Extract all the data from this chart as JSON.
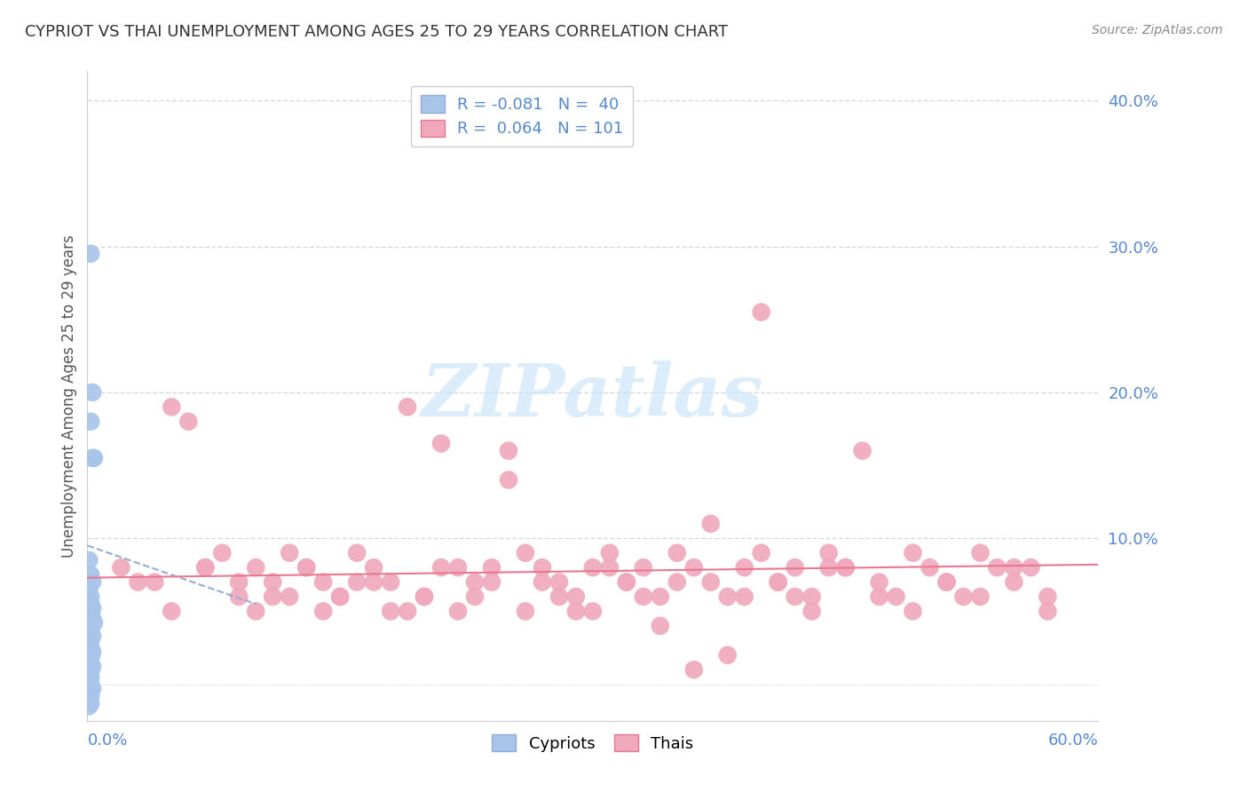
{
  "title": "CYPRIOT VS THAI UNEMPLOYMENT AMONG AGES 25 TO 29 YEARS CORRELATION CHART",
  "source": "Source: ZipAtlas.com",
  "ylabel": "Unemployment Among Ages 25 to 29 years",
  "yticks": [
    0.0,
    0.1,
    0.2,
    0.3,
    0.4
  ],
  "ytick_labels": [
    "",
    "10.0%",
    "20.0%",
    "30.0%",
    "40.0%"
  ],
  "xlim": [
    0.0,
    0.6
  ],
  "ylim": [
    -0.025,
    0.42
  ],
  "legend_cypriot": "R = -0.081   N =  40",
  "legend_thai": "R =  0.064   N = 101",
  "cypriot_color": "#a8c4e8",
  "thai_color": "#f0a8bc",
  "cypriot_line_color": "#90acd8",
  "thai_line_color": "#e87890",
  "grid_color": "#d8d8d8",
  "tick_label_color": "#5588cc",
  "ylabel_color": "#555555",
  "title_color": "#333333",
  "watermark_color": "#cce4f8",
  "cypriot_scatter": {
    "x": [
      0.002,
      0.003,
      0.002,
      0.003,
      0.004,
      0.001,
      0.002,
      0.003,
      0.001,
      0.002,
      0.001,
      0.002,
      0.003,
      0.001,
      0.002,
      0.003,
      0.004,
      0.001,
      0.002,
      0.001,
      0.003,
      0.002,
      0.001,
      0.002,
      0.003,
      0.001,
      0.002,
      0.001,
      0.003,
      0.002,
      0.001,
      0.002,
      0.001,
      0.002,
      0.003,
      0.001,
      0.002,
      0.001,
      0.002,
      0.001
    ],
    "y": [
      0.295,
      0.2,
      0.18,
      0.155,
      0.155,
      0.085,
      0.075,
      0.07,
      0.065,
      0.06,
      0.058,
      0.055,
      0.052,
      0.05,
      0.048,
      0.045,
      0.042,
      0.04,
      0.038,
      0.035,
      0.033,
      0.03,
      0.028,
      0.025,
      0.022,
      0.02,
      0.018,
      0.015,
      0.012,
      0.01,
      0.008,
      0.005,
      0.003,
      0.0,
      -0.003,
      -0.005,
      -0.008,
      -0.01,
      -0.013,
      -0.015
    ]
  },
  "thai_scatter": {
    "x": [
      0.02,
      0.04,
      0.05,
      0.06,
      0.07,
      0.08,
      0.09,
      0.1,
      0.11,
      0.12,
      0.13,
      0.14,
      0.15,
      0.16,
      0.17,
      0.18,
      0.19,
      0.2,
      0.21,
      0.22,
      0.23,
      0.24,
      0.25,
      0.26,
      0.27,
      0.28,
      0.29,
      0.3,
      0.31,
      0.32,
      0.33,
      0.34,
      0.35,
      0.36,
      0.37,
      0.38,
      0.39,
      0.4,
      0.41,
      0.42,
      0.43,
      0.44,
      0.45,
      0.46,
      0.47,
      0.48,
      0.49,
      0.5,
      0.51,
      0.52,
      0.53,
      0.54,
      0.55,
      0.56,
      0.57,
      0.03,
      0.05,
      0.07,
      0.09,
      0.11,
      0.13,
      0.15,
      0.17,
      0.19,
      0.21,
      0.23,
      0.25,
      0.27,
      0.29,
      0.31,
      0.33,
      0.35,
      0.37,
      0.39,
      0.41,
      0.43,
      0.45,
      0.47,
      0.49,
      0.51,
      0.53,
      0.55,
      0.57,
      0.1,
      0.12,
      0.14,
      0.16,
      0.18,
      0.2,
      0.22,
      0.24,
      0.26,
      0.28,
      0.3,
      0.32,
      0.34,
      0.36,
      0.38,
      0.4,
      0.42,
      0.44
    ],
    "y": [
      0.08,
      0.07,
      0.19,
      0.18,
      0.08,
      0.09,
      0.07,
      0.08,
      0.06,
      0.09,
      0.08,
      0.07,
      0.06,
      0.09,
      0.08,
      0.07,
      0.19,
      0.06,
      0.165,
      0.08,
      0.07,
      0.08,
      0.16,
      0.09,
      0.08,
      0.07,
      0.06,
      0.08,
      0.09,
      0.07,
      0.08,
      0.06,
      0.09,
      0.08,
      0.07,
      0.06,
      0.08,
      0.09,
      0.07,
      0.08,
      0.06,
      0.09,
      0.08,
      0.16,
      0.07,
      0.06,
      0.09,
      0.08,
      0.07,
      0.06,
      0.09,
      0.08,
      0.07,
      0.08,
      0.06,
      0.07,
      0.05,
      0.08,
      0.06,
      0.07,
      0.08,
      0.06,
      0.07,
      0.05,
      0.08,
      0.06,
      0.14,
      0.07,
      0.05,
      0.08,
      0.06,
      0.07,
      0.11,
      0.06,
      0.07,
      0.05,
      0.08,
      0.06,
      0.05,
      0.07,
      0.06,
      0.08,
      0.05,
      0.05,
      0.06,
      0.05,
      0.07,
      0.05,
      0.06,
      0.05,
      0.07,
      0.05,
      0.06,
      0.05,
      0.07,
      0.04,
      0.01,
      0.02,
      0.255,
      0.06,
      0.08
    ]
  },
  "cypriot_line": {
    "x0": 0.0,
    "x1": 0.1,
    "y0": 0.095,
    "y1": 0.055
  },
  "thai_line": {
    "x0": 0.0,
    "x1": 0.6,
    "y0": 0.073,
    "y1": 0.082
  }
}
